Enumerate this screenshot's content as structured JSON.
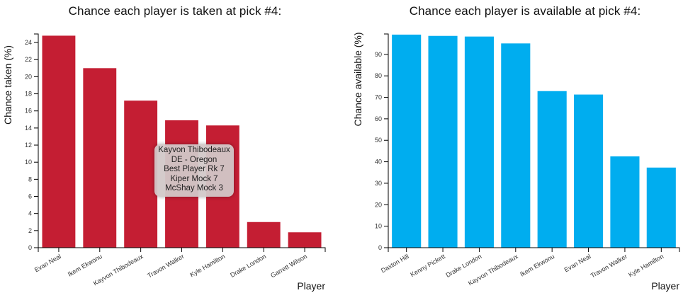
{
  "chart_data": [
    {
      "type": "bar",
      "title": "Chance each player is taken at pick #4:",
      "xlabel": "Player",
      "ylabel": "Chance taken (%)",
      "categories": [
        "Evan Neal",
        "Ikem Ekwonu",
        "Kayvon Thibodeaux",
        "Travon Walker",
        "Kyle Hamilton",
        "Drake London",
        "Garrett Wilson"
      ],
      "values": [
        24.8,
        21.0,
        17.2,
        14.9,
        14.3,
        3.0,
        1.8
      ],
      "ylim": [
        0,
        25
      ],
      "yticks": [
        0,
        2,
        4,
        6,
        8,
        10,
        12,
        14,
        16,
        18,
        20,
        22,
        24
      ],
      "color": "#c41e33",
      "grid": false,
      "tooltip": {
        "lines": [
          "Kayvon Thibodeaux",
          "DE - Oregon",
          "Best Player Rk 7",
          "Kiper Mock 7",
          "McShay Mock 3"
        ]
      }
    },
    {
      "type": "bar",
      "title": "Chance each player is available at pick #4:",
      "xlabel": "Player",
      "ylabel": "Chance available (%)",
      "categories": [
        "Daxton Hill",
        "Kenny Pickett",
        "Drake London",
        "Kayvon Thibodeaux",
        "Ikem Ekwonu",
        "Evan Neal",
        "Travon Walker",
        "Kyle Hamilton"
      ],
      "values": [
        99.2,
        98.6,
        98.3,
        95.1,
        72.9,
        71.3,
        42.5,
        37.3
      ],
      "ylim": [
        0,
        99.5
      ],
      "yticks": [
        0,
        10,
        20,
        30,
        40,
        50,
        60,
        70,
        80,
        90
      ],
      "color": "#00adef",
      "grid": false
    }
  ]
}
